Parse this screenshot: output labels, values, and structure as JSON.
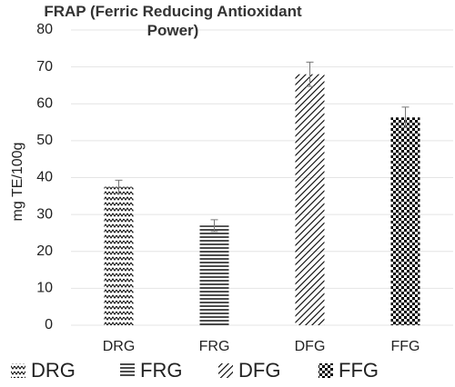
{
  "chart_data": {
    "type": "bar",
    "title": "FRAP (Ferric Reducing Antioxidant Power)",
    "y_label": "mg TE/100g",
    "categories": [
      "DRG",
      "FRG",
      "DFG",
      "FFG"
    ],
    "values": [
      37.5,
      27,
      68,
      56.3
    ],
    "errors": [
      1.8,
      1.6,
      3.3,
      2.8
    ],
    "patterns": [
      "zigzag",
      "horizontal",
      "diagonal",
      "checker"
    ],
    "color": "#000000",
    "ylim": [
      0,
      80
    ],
    "yticks": [
      0,
      10,
      20,
      30,
      40,
      50,
      60,
      70,
      80
    ],
    "grid": true,
    "legend": "bottom"
  }
}
